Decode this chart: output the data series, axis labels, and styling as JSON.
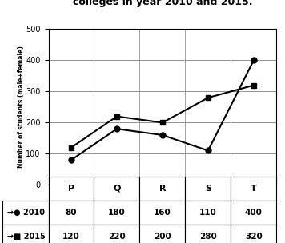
{
  "title": "colleges in year 2010 and 2015.",
  "colleges": [
    "P",
    "Q",
    "R",
    "S",
    "T"
  ],
  "data_2010": [
    80,
    180,
    160,
    110,
    400
  ],
  "data_2015": [
    120,
    220,
    200,
    280,
    320
  ],
  "ylabel": "Number of students (male+female)",
  "ylim": [
    0,
    500
  ],
  "yticks": [
    0,
    100,
    200,
    300,
    400,
    500
  ],
  "line_color": "#000000",
  "marker_2010": "o",
  "marker_2015": "s",
  "title_fontsize": 9,
  "legend_2010": "2010",
  "legend_2015": "2015",
  "table_row_2010": [
    "80",
    "180",
    "160",
    "110",
    "400"
  ],
  "table_row_2015": [
    "120",
    "220",
    "200",
    "280",
    "320"
  ]
}
